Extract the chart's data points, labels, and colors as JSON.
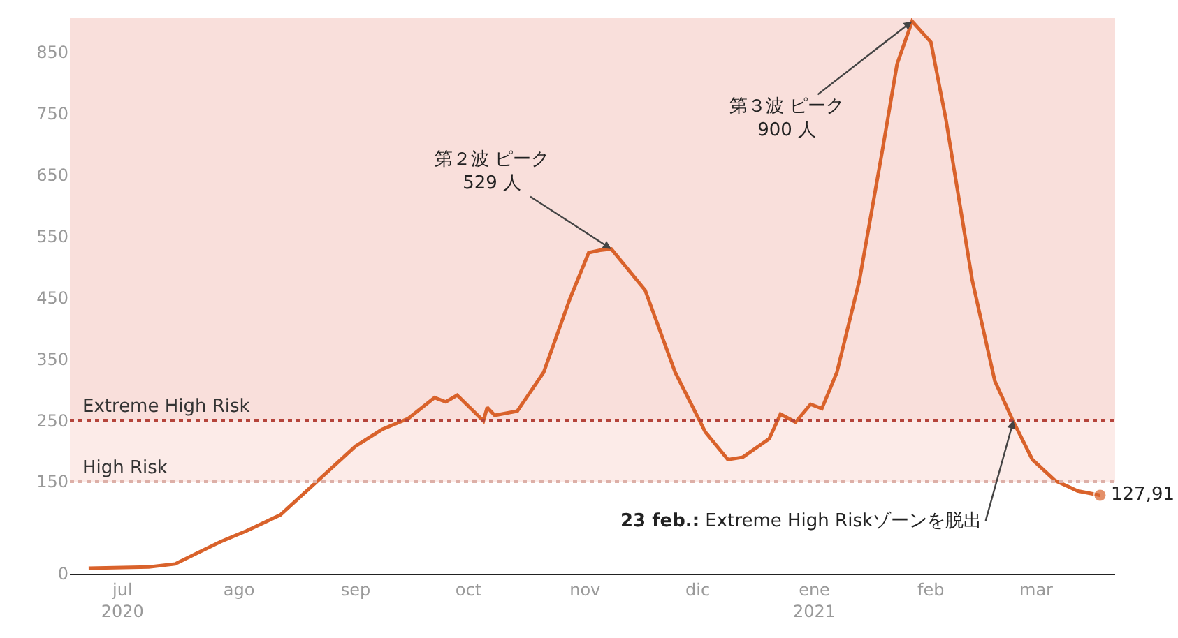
{
  "chart_data": {
    "type": "line",
    "x": [
      "2020-06-22",
      "2020-07-08",
      "2020-07-15",
      "2020-07-21",
      "2020-07-27",
      "2020-08-03",
      "2020-08-12",
      "2020-08-22",
      "2020-09-01",
      "2020-09-08",
      "2020-09-15",
      "2020-09-22",
      "2020-09-25",
      "2020-09-28",
      "2020-10-05",
      "2020-10-06",
      "2020-10-08",
      "2020-10-14",
      "2020-10-21",
      "2020-10-28",
      "2020-11-02",
      "2020-11-05",
      "2020-11-08",
      "2020-11-17",
      "2020-11-25",
      "2020-12-03",
      "2020-12-09",
      "2020-12-13",
      "2020-12-20",
      "2020-12-23",
      "2020-12-27",
      "2020-12-31",
      "2021-01-03",
      "2021-01-07",
      "2021-01-13",
      "2021-01-19",
      "2021-01-23",
      "2021-01-27",
      "2021-02-01",
      "2021-02-05",
      "2021-02-12",
      "2021-02-18",
      "2021-02-23",
      "2021-02-28",
      "2021-03-06",
      "2021-03-12",
      "2021-03-18"
    ],
    "series": [
      {
        "color": "#d9622b",
        "values": [
          9,
          11,
          16,
          34,
          52,
          70,
          96,
          152,
          208,
          235,
          253,
          287,
          280,
          291,
          249,
          271,
          258,
          265,
          328,
          448,
          523,
          527,
          529,
          462,
          328,
          231,
          186,
          190,
          220,
          260,
          247,
          276,
          269,
          328,
          478,
          686,
          830,
          900,
          866,
          740,
          478,
          314,
          247,
          186,
          152,
          135,
          127.91
        ]
      }
    ],
    "xlim": [
      "2020-06-17",
      "2021-03-22"
    ],
    "xticks": [
      {
        "value": "2020-07-01",
        "label": "jul\n2020"
      },
      {
        "value": "2020-08-01",
        "label": "ago"
      },
      {
        "value": "2020-09-01",
        "label": "sep"
      },
      {
        "value": "2020-10-01",
        "label": "oct"
      },
      {
        "value": "2020-11-01",
        "label": "nov"
      },
      {
        "value": "2020-12-01",
        "label": "dic"
      },
      {
        "value": "2021-01-01",
        "label": "ene\n2021"
      },
      {
        "value": "2021-02-01",
        "label": "feb"
      },
      {
        "value": "2021-03-01",
        "label": "mar"
      }
    ],
    "ylim": [
      0,
      905
    ],
    "yticks": [
      0,
      150,
      250,
      350,
      450,
      550,
      650,
      750,
      850
    ],
    "grid": false,
    "bands": [
      {
        "axis": "y",
        "from": 150,
        "to": 250,
        "color": "#fcebe8"
      },
      {
        "axis": "y",
        "from": 250,
        "to": 905,
        "color": "#f9dfdb"
      }
    ],
    "ref_lines": [
      {
        "axis": "y",
        "value": 250,
        "label": "Extreme High Risk",
        "color": "#b5443b",
        "line_style": "dotted"
      },
      {
        "axis": "y",
        "value": 150,
        "label": "High Risk",
        "color": "#ddb0a8",
        "line_style": "dotted"
      }
    ],
    "annotations": [
      {
        "text": "第２波 ピーク\n529 人",
        "x": "2020-11-08",
        "y": 529
      },
      {
        "text": "第３波 ピーク\n900 人",
        "x": "2021-01-27",
        "y": 900
      },
      {
        "text": "23 feb.: Extreme High Riskゾーンを脱出",
        "x": "2021-02-23",
        "y": 250
      },
      {
        "text": "127,91",
        "x": "2021-03-18",
        "y": 127.91
      }
    ]
  }
}
